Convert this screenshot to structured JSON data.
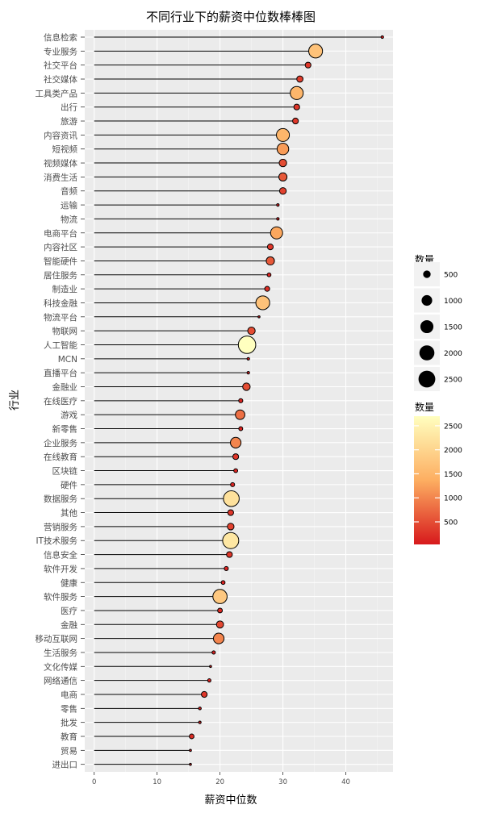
{
  "chart_data": {
    "type": "lollipop",
    "title": "不同行业下的薪资中位数棒棒图",
    "xlabel": "薪资中位数",
    "ylabel": "行业",
    "xlim": [
      -1.5,
      47.5
    ],
    "xticks": [
      0,
      10,
      20,
      30,
      40
    ],
    "grid": true,
    "legend_position": "right",
    "size_legend": {
      "title": "数量",
      "breaks": [
        500,
        1000,
        1500,
        2000,
        2500
      ]
    },
    "color_legend": {
      "title": "数量",
      "breaks": [
        500,
        1000,
        1500,
        2000,
        2500
      ],
      "min": 30,
      "max": 2700,
      "low_color": "#d7191c",
      "mid_color": "#fdae61",
      "high_color": "#ffffbf"
    },
    "points": [
      {
        "label": "信息检索",
        "value": 45.8,
        "count": 60
      },
      {
        "label": "专业服务",
        "value": 35.2,
        "count": 1700
      },
      {
        "label": "社交平台",
        "value": 34.0,
        "count": 300
      },
      {
        "label": "社交媒体",
        "value": 32.7,
        "count": 350
      },
      {
        "label": "工具类产品",
        "value": 32.2,
        "count": 1500
      },
      {
        "label": "出行",
        "value": 32.2,
        "count": 300
      },
      {
        "label": "旅游",
        "value": 32.0,
        "count": 300
      },
      {
        "label": "内容资讯",
        "value": 30.0,
        "count": 1500
      },
      {
        "label": "短视频",
        "value": 30.0,
        "count": 1200
      },
      {
        "label": "视频媒体",
        "value": 30.0,
        "count": 500
      },
      {
        "label": "消费生活",
        "value": 30.0,
        "count": 600
      },
      {
        "label": "音频",
        "value": 30.0,
        "count": 400
      },
      {
        "label": "运输",
        "value": 29.2,
        "count": 60
      },
      {
        "label": "物流",
        "value": 29.2,
        "count": 60
      },
      {
        "label": "电商平台",
        "value": 29.0,
        "count": 1300
      },
      {
        "label": "内容社区",
        "value": 28.0,
        "count": 300
      },
      {
        "label": "智能硬件",
        "value": 28.0,
        "count": 600
      },
      {
        "label": "居住服务",
        "value": 27.8,
        "count": 130
      },
      {
        "label": "制造业",
        "value": 27.5,
        "count": 220
      },
      {
        "label": "科技金融",
        "value": 26.8,
        "count": 1700
      },
      {
        "label": "物流平台",
        "value": 26.2,
        "count": 40
      },
      {
        "label": "物联网",
        "value": 25.0,
        "count": 500
      },
      {
        "label": "人工智能",
        "value": 24.3,
        "count": 2700
      },
      {
        "label": "MCN",
        "value": 24.5,
        "count": 60
      },
      {
        "label": "直播平台",
        "value": 24.5,
        "count": 60
      },
      {
        "label": "金融业",
        "value": 24.2,
        "count": 500
      },
      {
        "label": "在线医疗",
        "value": 23.3,
        "count": 150
      },
      {
        "label": "游戏",
        "value": 23.2,
        "count": 800
      },
      {
        "label": "新零售",
        "value": 23.3,
        "count": 140
      },
      {
        "label": "企业服务",
        "value": 22.5,
        "count": 1000
      },
      {
        "label": "在线教育",
        "value": 22.5,
        "count": 300
      },
      {
        "label": "区块链",
        "value": 22.5,
        "count": 140
      },
      {
        "label": "硬件",
        "value": 22.0,
        "count": 150
      },
      {
        "label": "数据服务",
        "value": 21.8,
        "count": 2200
      },
      {
        "label": "其他",
        "value": 21.7,
        "count": 300
      },
      {
        "label": "营销服务",
        "value": 21.7,
        "count": 400
      },
      {
        "label": "IT技术服务",
        "value": 21.7,
        "count": 2300
      },
      {
        "label": "信息安全",
        "value": 21.5,
        "count": 300
      },
      {
        "label": "软件开发",
        "value": 21.0,
        "count": 150
      },
      {
        "label": "健康",
        "value": 20.5,
        "count": 130
      },
      {
        "label": "软件服务",
        "value": 20.0,
        "count": 1800
      },
      {
        "label": "医疗",
        "value": 20.0,
        "count": 200
      },
      {
        "label": "金融",
        "value": 20.0,
        "count": 450
      },
      {
        "label": "移动互联网",
        "value": 19.8,
        "count": 1000
      },
      {
        "label": "生活服务",
        "value": 19.0,
        "count": 100
      },
      {
        "label": "文化传媒",
        "value": 18.5,
        "count": 40
      },
      {
        "label": "网络通信",
        "value": 18.3,
        "count": 100
      },
      {
        "label": "电商",
        "value": 17.5,
        "count": 300
      },
      {
        "label": "零售",
        "value": 16.8,
        "count": 70
      },
      {
        "label": "批发",
        "value": 16.8,
        "count": 60
      },
      {
        "label": "教育",
        "value": 15.5,
        "count": 200
      },
      {
        "label": "贸易",
        "value": 15.3,
        "count": 40
      },
      {
        "label": "进出口",
        "value": 15.3,
        "count": 40
      }
    ]
  }
}
